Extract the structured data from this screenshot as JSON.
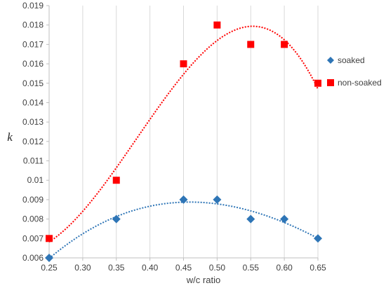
{
  "chart_data": {
    "type": "scatter",
    "title": "",
    "xlabel": "w/c ratio",
    "ylabel": "k",
    "xlim": [
      0.25,
      0.65
    ],
    "ylim": [
      0.006,
      0.019
    ],
    "x_ticks": [
      "0.25",
      "0.30",
      "0.35",
      "0.40",
      "0.45",
      "0.50",
      "0.55",
      "0.60",
      "0.65"
    ],
    "y_ticks": [
      "0.006",
      "0.007",
      "0.008",
      "0.009",
      "0.01",
      "0.011",
      "0.012",
      "0.013",
      "0.014",
      "0.015",
      "0.016",
      "0.017",
      "0.018",
      "0.019"
    ],
    "grid": {
      "vertical": true,
      "horizontal": false
    },
    "legend_position": "right",
    "series": [
      {
        "name": "soaked",
        "marker": "diamond",
        "color": "#2e75b6",
        "trendline": "polynomial",
        "points": [
          {
            "x": 0.25,
            "y": 0.006
          },
          {
            "x": 0.35,
            "y": 0.008
          },
          {
            "x": 0.45,
            "y": 0.009
          },
          {
            "x": 0.5,
            "y": 0.009
          },
          {
            "x": 0.55,
            "y": 0.008
          },
          {
            "x": 0.6,
            "y": 0.008
          },
          {
            "x": 0.65,
            "y": 0.007
          }
        ]
      },
      {
        "name": "non-soaked",
        "marker": "square",
        "color": "#ff0000",
        "trendline": "polynomial",
        "points": [
          {
            "x": 0.25,
            "y": 0.007
          },
          {
            "x": 0.35,
            "y": 0.01
          },
          {
            "x": 0.45,
            "y": 0.016
          },
          {
            "x": 0.5,
            "y": 0.018
          },
          {
            "x": 0.55,
            "y": 0.017
          },
          {
            "x": 0.6,
            "y": 0.017
          },
          {
            "x": 0.65,
            "y": 0.015
          }
        ]
      }
    ]
  }
}
